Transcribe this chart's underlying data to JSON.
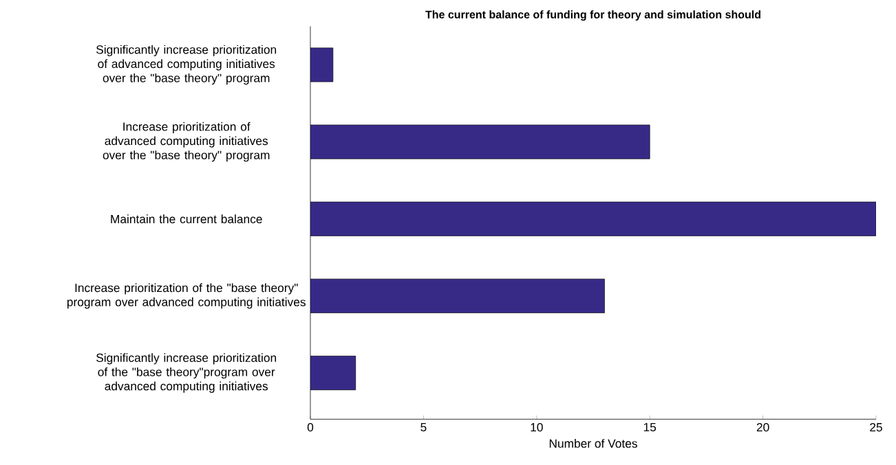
{
  "chart_data": {
    "type": "bar",
    "orientation": "horizontal",
    "title": "The current balance of funding for theory and simulation should",
    "xlabel": "Number of Votes",
    "categories": [
      "Significantly increase prioritization of advanced computing initiatives over the \"base theory\" program",
      "Increase prioritization of advanced computing initiatives over the \"base theory\" program",
      "Maintain the current balance",
      "Increase prioritization of the \"base theory\" program over advanced computing initiatives",
      "Significantly increase prioritization of the \"base theory\"program over advanced computing initiatives"
    ],
    "values": [
      1,
      15,
      25,
      13,
      2
    ],
    "color": "#372a87",
    "xlim": [
      0,
      25
    ],
    "xticks": [
      0,
      5,
      10,
      15,
      20,
      25
    ],
    "grid": false
  }
}
